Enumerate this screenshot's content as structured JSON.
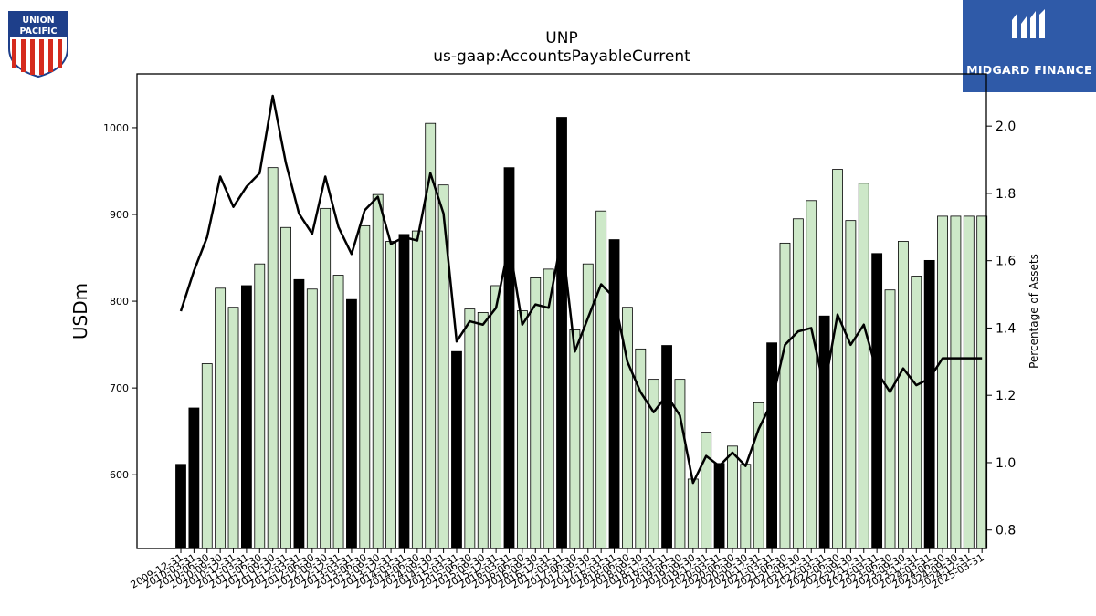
{
  "header": {
    "ticker": "UNP",
    "metric": "us-gaap:AccountsPayableCurrent"
  },
  "logos": {
    "left_brand": "UNION PACIFIC",
    "right_brand": "MIDGARD FINANCE"
  },
  "colors": {
    "bar_light": "#cde8c8",
    "bar_dark": "#000000",
    "line": "#000000",
    "brand_blue": "#2f5aa8",
    "up_red": "#d52b1e",
    "up_blue": "#1e3f8a"
  },
  "chart_data": {
    "type": "bar",
    "title": "UNP",
    "subtitle": "us-gaap:AccountsPayableCurrent",
    "ylabel": "USDm",
    "y2label": "Percentage of Assets",
    "ylim": [
      515,
      1062
    ],
    "y2lim": [
      0.745,
      2.155
    ],
    "yticks": [
      600,
      700,
      800,
      900,
      1000
    ],
    "y2ticks": [
      0.8,
      1.0,
      1.2,
      1.4,
      1.6,
      1.8,
      2.0
    ],
    "categories": [
      "2009-12-31",
      "2010-03-31",
      "2010-06-30",
      "2010-09-30",
      "2010-12-31",
      "2011-03-31",
      "2011-06-30",
      "2011-09-30",
      "2011-12-31",
      "2012-03-31",
      "2012-06-30",
      "2012-09-30",
      "2012-12-31",
      "2013-03-31",
      "2013-06-30",
      "2013-09-30",
      "2013-12-31",
      "2014-03-31",
      "2014-06-30",
      "2014-09-30",
      "2014-12-31",
      "2015-03-31",
      "2015-06-30",
      "2015-09-30",
      "2015-12-31",
      "2016-03-31",
      "2016-06-30",
      "2016-09-30",
      "2016-12-31",
      "2017-03-31",
      "2017-06-30",
      "2017-09-30",
      "2017-12-31",
      "2018-03-31",
      "2018-06-30",
      "2018-09-30",
      "2018-12-31",
      "2019-03-31",
      "2019-06-30",
      "2019-09-30",
      "2019-12-31",
      "2020-03-31",
      "2020-06-30",
      "2020-09-30",
      "2020-12-31",
      "2021-03-31",
      "2021-06-30",
      "2021-09-30",
      "2021-12-31",
      "2022-03-31",
      "2022-06-30",
      "2022-09-30",
      "2022-12-31",
      "2023-03-31",
      "2023-06-30",
      "2023-09-30",
      "2023-12-31",
      "2024-03-31",
      "2024-06-30",
      "2024-09-30",
      "2024-12-31",
      "2025-03-31"
    ],
    "series": [
      {
        "kind": "bar",
        "values": [
          612,
          677,
          728,
          815,
          793,
          818,
          843,
          954,
          885,
          825,
          814,
          907,
          830,
          802,
          887,
          923,
          869,
          877,
          881,
          1005,
          934,
          742,
          791,
          787,
          818,
          954,
          789,
          827,
          837,
          1012,
          767,
          843,
          904,
          871,
          793,
          745,
          710,
          749,
          710,
          595,
          649,
          613,
          633,
          612,
          683,
          752,
          867,
          895,
          916,
          783,
          952,
          893,
          936,
          855,
          813,
          869,
          829,
          847,
          898,
          898,
          898,
          898
        ],
        "dark_flags": [
          true,
          true,
          false,
          false,
          false,
          true,
          false,
          false,
          false,
          true,
          false,
          false,
          false,
          true,
          false,
          false,
          false,
          true,
          false,
          false,
          false,
          true,
          false,
          false,
          false,
          true,
          false,
          false,
          false,
          true,
          false,
          false,
          false,
          true,
          false,
          false,
          false,
          true,
          false,
          false,
          false,
          true,
          false,
          false,
          false,
          true,
          false,
          false,
          false,
          true,
          false,
          false,
          false,
          true,
          false,
          false,
          false,
          true,
          false,
          false,
          false,
          false
        ]
      },
      {
        "kind": "line",
        "axis": "right",
        "values": [
          1.45,
          1.57,
          1.67,
          1.85,
          1.76,
          1.82,
          1.86,
          2.09,
          1.89,
          1.74,
          1.68,
          1.85,
          1.7,
          1.62,
          1.75,
          1.79,
          1.65,
          1.67,
          1.66,
          1.86,
          1.74,
          1.36,
          1.42,
          1.41,
          1.46,
          1.65,
          1.41,
          1.47,
          1.46,
          1.67,
          1.33,
          1.43,
          1.53,
          1.49,
          1.3,
          1.21,
          1.15,
          1.2,
          1.14,
          0.94,
          1.02,
          0.99,
          1.03,
          0.99,
          1.1,
          1.18,
          1.35,
          1.39,
          1.4,
          1.22,
          1.44,
          1.35,
          1.41,
          1.27,
          1.21,
          1.28,
          1.23,
          1.25,
          1.31,
          1.31,
          1.31,
          1.31
        ]
      }
    ],
    "grid": false,
    "legend": "none"
  }
}
